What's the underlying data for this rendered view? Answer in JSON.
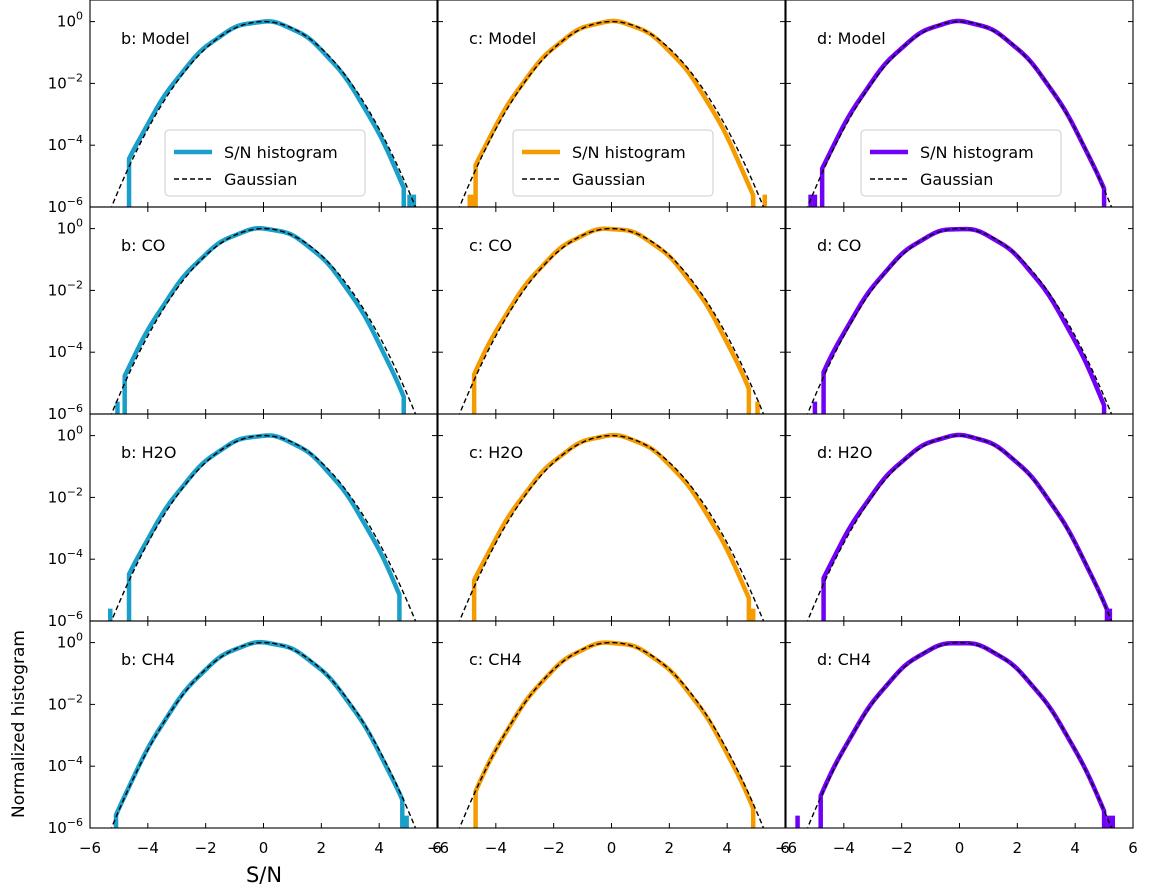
{
  "chart_data": {
    "type": "line",
    "xlabel": "S/N",
    "ylabel": "Normalized histogram",
    "xlim": [
      -6,
      6
    ],
    "ylim": [
      1e-06,
      5
    ],
    "yscale": "log",
    "x_ticks": [
      "−6",
      "−4",
      "−2",
      "0",
      "2",
      "4",
      "6"
    ],
    "y_tick_exponents": [
      "0",
      "−2",
      "−4",
      "−6"
    ],
    "y_tick_base": "10",
    "grid": false,
    "legend_placement": "lower-center",
    "legend": {
      "histogram": "S/N histogram",
      "gaussian": "Gaussian"
    },
    "series_colors": {
      "b": "#1a9fca",
      "c": "#f59b00",
      "d": "#7000f6"
    },
    "gaussian_color": "#000000",
    "columns": [
      "b",
      "c",
      "d"
    ],
    "rows": [
      "Model",
      "CO",
      "H2O",
      "CH4"
    ],
    "panels": [
      {
        "col": "b",
        "row": "Model",
        "label": "b: Model",
        "legend": true,
        "x_min": -4.65,
        "x_max": 4.85,
        "slope_l": 0.95,
        "slope_r": 1.05,
        "tail_left": [],
        "tail_right": [
          5.05,
          5.2
        ]
      },
      {
        "col": "c",
        "row": "Model",
        "label": "c: Model",
        "legend": true,
        "x_min": -4.7,
        "x_max": 4.9,
        "slope_l": 0.97,
        "slope_r": 1.08,
        "tail_left": [
          -4.9,
          -4.75
        ],
        "tail_right": [
          5.3
        ]
      },
      {
        "col": "d",
        "row": "Model",
        "label": "d: Model",
        "legend": true,
        "x_min": -4.75,
        "x_max": 5.0,
        "slope_l": 0.97,
        "slope_r": 1.0,
        "tail_left": [
          -5.15,
          -5.0
        ],
        "tail_right": []
      },
      {
        "col": "b",
        "row": "CO",
        "label": "b: CO",
        "legend": false,
        "x_min": -4.8,
        "x_max": 4.85,
        "slope_l": 0.95,
        "slope_r": 1.07,
        "tail_left": [
          -5.05
        ],
        "tail_right": []
      },
      {
        "col": "c",
        "row": "CO",
        "label": "c: CO",
        "legend": false,
        "x_min": -4.75,
        "x_max": 4.75,
        "slope_l": 0.96,
        "slope_r": 1.06,
        "tail_left": [],
        "tail_right": [
          5.05
        ]
      },
      {
        "col": "d",
        "row": "CO",
        "label": "d: CO",
        "legend": false,
        "x_min": -4.7,
        "x_max": 5.0,
        "slope_l": 0.97,
        "slope_r": 1.05,
        "tail_left": [
          -5.0
        ],
        "tail_right": []
      },
      {
        "col": "b",
        "row": "H2O",
        "label": "b: H2O",
        "legend": false,
        "x_min": -4.65,
        "x_max": 4.7,
        "slope_l": 0.96,
        "slope_r": 1.07,
        "tail_left": [
          -5.3
        ],
        "tail_right": []
      },
      {
        "col": "c",
        "row": "H2O",
        "label": "c: H2O",
        "legend": false,
        "x_min": -4.75,
        "x_max": 4.75,
        "slope_l": 0.96,
        "slope_r": 1.07,
        "tail_left": [],
        "tail_right": [
          4.9
        ]
      },
      {
        "col": "d",
        "row": "H2O",
        "label": "d: H2O",
        "legend": false,
        "x_min": -4.7,
        "x_max": 5.1,
        "slope_l": 0.96,
        "slope_r": 1.0,
        "tail_left": [],
        "tail_right": [
          5.2
        ]
      },
      {
        "col": "b",
        "row": "CH4",
        "label": "b: CH4",
        "legend": false,
        "x_min": -5.1,
        "x_max": 4.8,
        "slope_l": 0.99,
        "slope_r": 1.02,
        "tail_left": [],
        "tail_right": [
          4.95
        ]
      },
      {
        "col": "c",
        "row": "CH4",
        "label": "c: CH4",
        "legend": false,
        "x_min": -4.7,
        "x_max": 4.9,
        "slope_l": 1.0,
        "slope_r": 1.03,
        "tail_left": [],
        "tail_right": []
      },
      {
        "col": "d",
        "row": "CH4",
        "label": "d: CH4",
        "legend": false,
        "x_min": -4.8,
        "x_max": 5.0,
        "slope_l": 0.99,
        "slope_r": 1.0,
        "tail_left": [
          -5.6
        ],
        "tail_right": [
          5.15,
          5.3
        ]
      }
    ]
  }
}
